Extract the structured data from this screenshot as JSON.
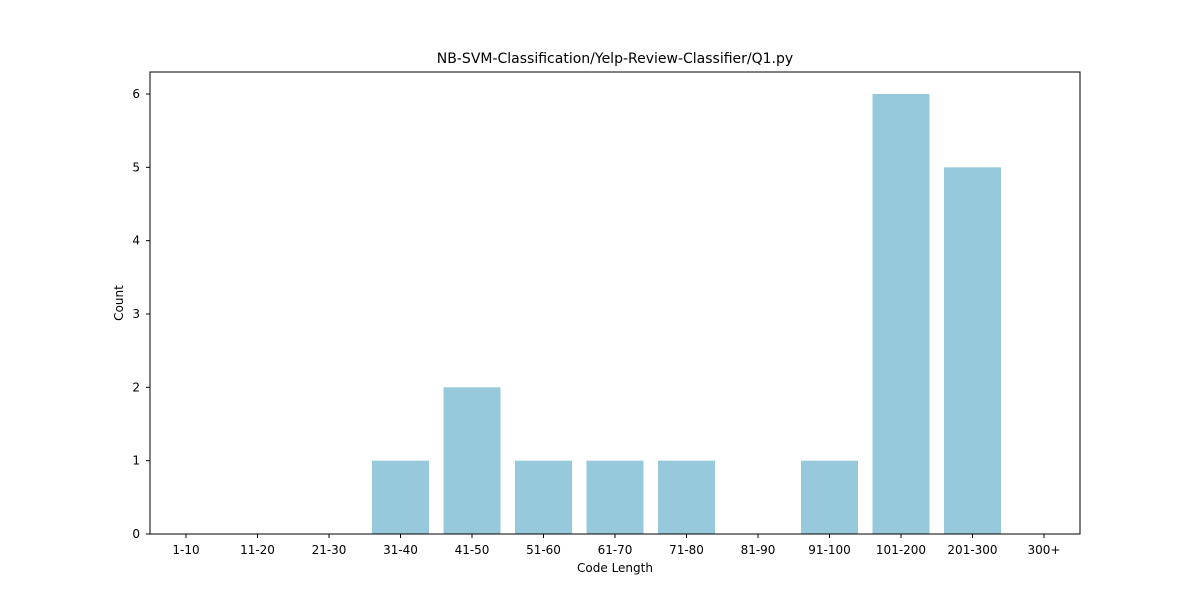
{
  "chart_data": {
    "type": "bar",
    "title": "NB-SVM-Classification/Yelp-Review-Classifier/Q1.py",
    "xlabel": "Code Length",
    "ylabel": "Count",
    "categories": [
      "1-10",
      "11-20",
      "21-30",
      "31-40",
      "41-50",
      "51-60",
      "61-70",
      "71-80",
      "81-90",
      "91-100",
      "101-200",
      "201-300",
      "300+"
    ],
    "values": [
      0,
      0,
      0,
      1,
      2,
      1,
      1,
      1,
      0,
      1,
      6,
      5,
      0
    ],
    "yticks": [
      "0",
      "1",
      "2",
      "3",
      "4",
      "5",
      "6"
    ],
    "ylim": [
      0,
      6.3
    ],
    "grid": false,
    "bar_color": "#96c9dc"
  }
}
